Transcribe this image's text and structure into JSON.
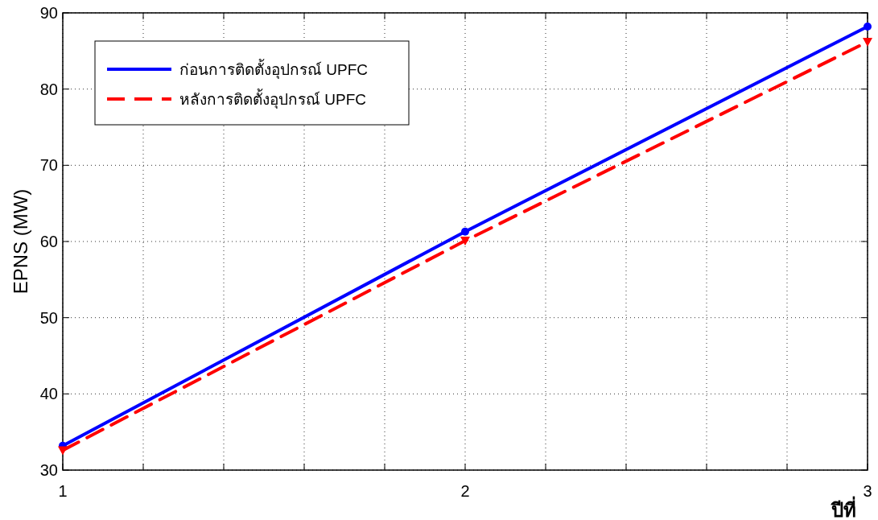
{
  "chart_data": {
    "type": "line",
    "xlabel": "ปีที่",
    "ylabel": "EPNS (MW)",
    "x": [
      1,
      2,
      3
    ],
    "xlim": [
      1,
      3
    ],
    "xticks": [
      1,
      {
        "value": 1.2,
        "label": null
      },
      {
        "value": 1.4,
        "label": null
      },
      {
        "value": 1.6,
        "label": null
      },
      {
        "value": 1.8,
        "label": null
      },
      2,
      {
        "value": 2.2,
        "label": null
      },
      {
        "value": 2.4,
        "label": null
      },
      {
        "value": 2.6,
        "label": null
      },
      {
        "value": 2.8,
        "label": null
      },
      3
    ],
    "ylim": [
      30,
      90
    ],
    "yticks": [
      30,
      40,
      50,
      60,
      70,
      80,
      90
    ],
    "grid": true,
    "legend": "top left",
    "series": [
      {
        "name": "ก่อนการติดตั้งอุปกรณ์ UPFC",
        "color": "#0000ff",
        "values": [
          33.2,
          61.3,
          88.2
        ],
        "marker": "circle",
        "line_style": "solid"
      },
      {
        "name": "หลังการติดตั้งอุปกรณ์ UPFC",
        "color": "#ff0000",
        "values": [
          32.6,
          60.1,
          86.2
        ],
        "marker": "triangle",
        "line_style": "dashed"
      }
    ]
  }
}
